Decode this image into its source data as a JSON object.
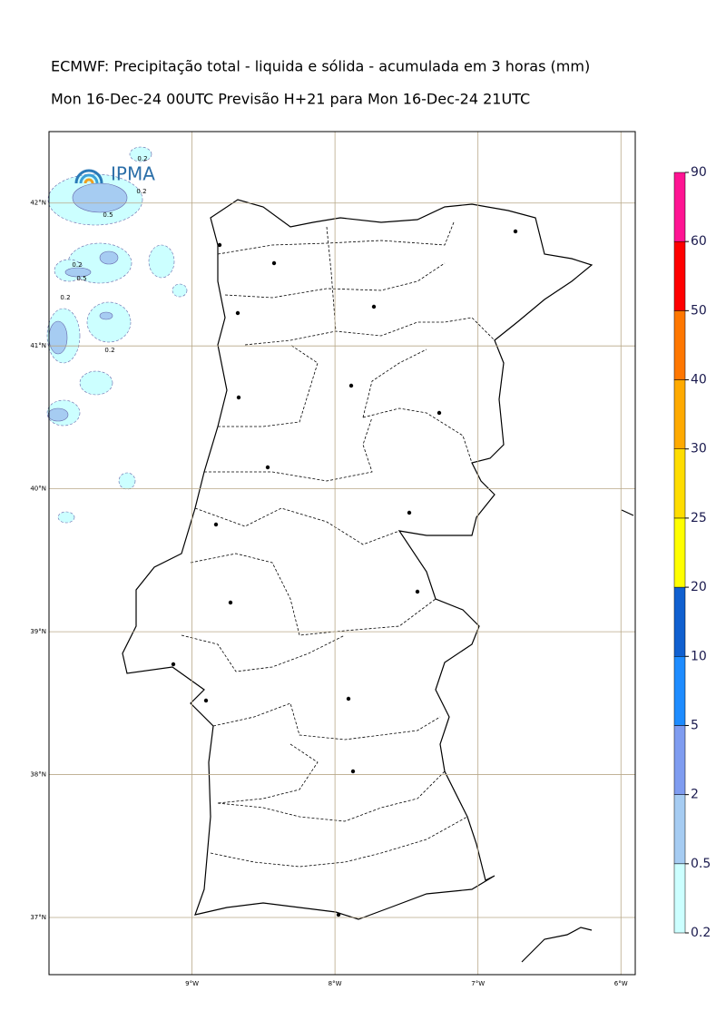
{
  "title": "ECMWF: Precipitação total - liquida e sólida - acumulada em 3 horas (mm)",
  "subtitle": "Mon 16-Dec-24 00UTC Previsão H+21 para Mon 16-Dec-24 21UTC",
  "logo": "IPMA",
  "map": {
    "xlim": [
      -10,
      -5.9
    ],
    "ylim": [
      36.6,
      42.5
    ],
    "xticks": [
      {
        "value": -9,
        "label": "9°W"
      },
      {
        "value": -8,
        "label": "8°W"
      },
      {
        "value": -7,
        "label": "7°W"
      },
      {
        "value": -6,
        "label": "6°W"
      }
    ],
    "yticks": [
      {
        "value": 42,
        "label": "42°N"
      },
      {
        "value": 41,
        "label": "41°N"
      },
      {
        "value": 40,
        "label": "40°N"
      },
      {
        "value": 39,
        "label": "39°N"
      },
      {
        "value": 38,
        "label": "38°N"
      },
      {
        "value": 37,
        "label": "37°N"
      }
    ],
    "contour_labels": [
      0.2,
      0.2,
      0.5,
      0.2,
      0.5,
      0.2,
      0.2
    ]
  },
  "colorbar": {
    "ticks": [
      0.2,
      0.5,
      2,
      5,
      10,
      20,
      25,
      30,
      40,
      50,
      60,
      90
    ],
    "colors": [
      "#ccffff",
      "#a6ccf2",
      "#7f9cf0",
      "#1e8cff",
      "#1060d0",
      "#ffff00",
      "#ffdd00",
      "#ffaa00",
      "#ff7700",
      "#ff0000",
      "#ff1493"
    ]
  }
}
